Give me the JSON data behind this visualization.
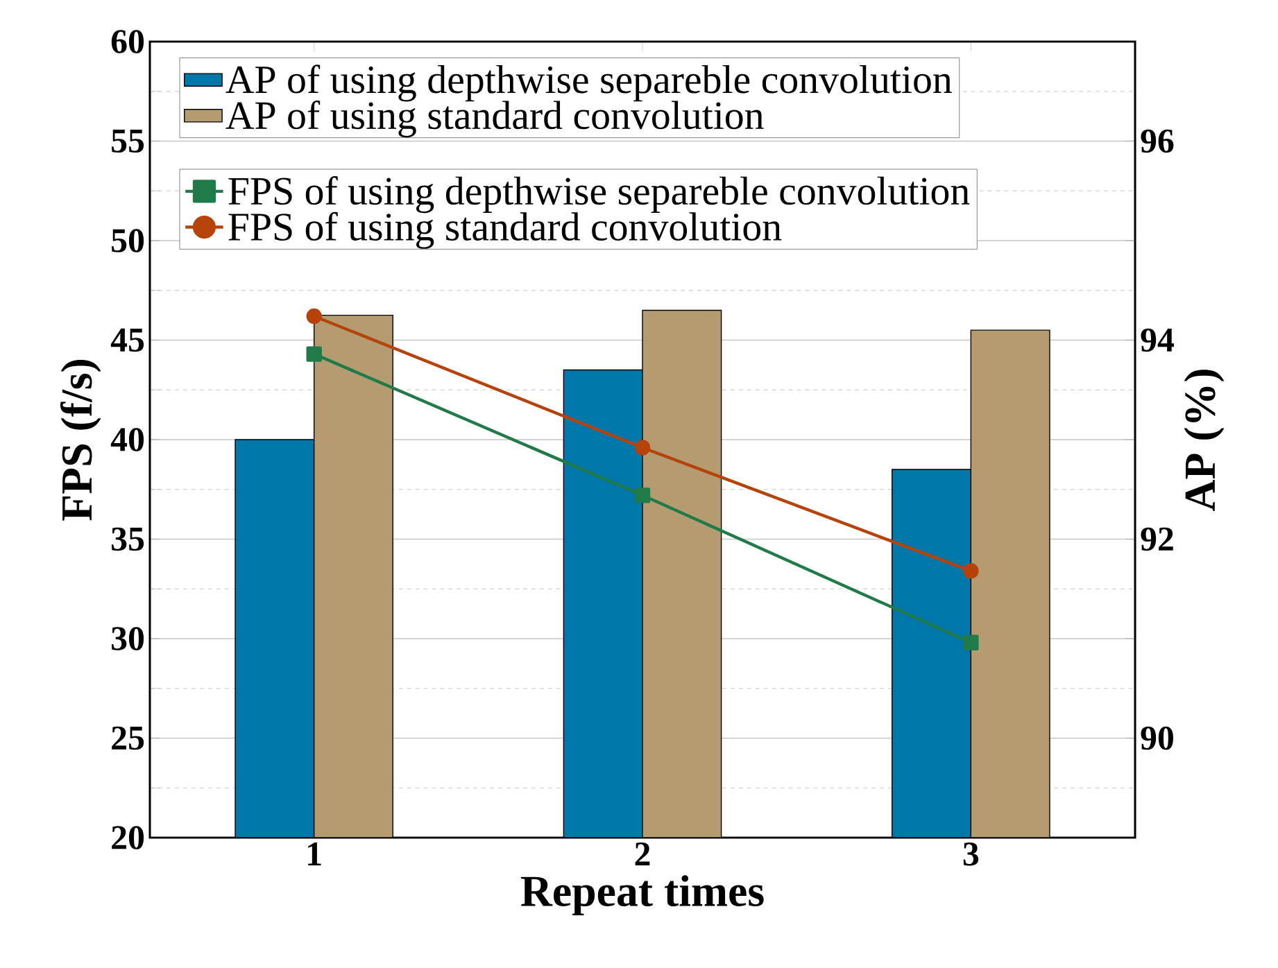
{
  "chart_data": {
    "type": "bar",
    "categories": [
      "1",
      "2",
      "3"
    ],
    "xlabel": "Repeat times",
    "ylabel": "FPS (f/s)",
    "y2label": "AP (%)",
    "ylim": [
      20,
      60
    ],
    "yticks": [
      20,
      {
        "value": 22.5,
        "label": null
      },
      25,
      {
        "value": 27.5,
        "label": null
      },
      30,
      {
        "value": 32.5,
        "label": null
      },
      35,
      {
        "value": 37.5,
        "label": null
      },
      40,
      {
        "value": 42.5,
        "label": null
      },
      45,
      {
        "value": 47.5,
        "label": null
      },
      50,
      {
        "value": 52.5,
        "label": null
      },
      55,
      {
        "value": 57.5,
        "label": null
      },
      60
    ],
    "y2lim": [
      89,
      97
    ],
    "y2ticks": [
      90,
      {
        "value": 91,
        "label": null
      },
      92,
      {
        "value": 93,
        "label": null
      },
      94,
      {
        "value": 95,
        "label": null
      },
      96
    ],
    "grid": "y",
    "legend": "top left",
    "series": [
      {
        "name": "AP of using depthwise separeble convolution",
        "axis": "y2",
        "color": "#0077aa",
        "values": [
          93.0,
          93.7,
          92.7
        ]
      },
      {
        "name": "AP of using standard convolution",
        "axis": "y2",
        "color": "#b49c70",
        "values": [
          94.25,
          94.3,
          94.1
        ]
      },
      {
        "name": "FPS of using depthwise separeble convolution",
        "type": "line",
        "axis": "y",
        "color": "#217a4a",
        "marker": "square",
        "values": [
          44.3,
          37.2,
          29.8
        ]
      },
      {
        "name": "FPS of using standard convolution",
        "type": "line",
        "axis": "y",
        "color": "#b5430a",
        "marker": "circle",
        "values": [
          46.2,
          39.6,
          33.4
        ]
      }
    ]
  }
}
